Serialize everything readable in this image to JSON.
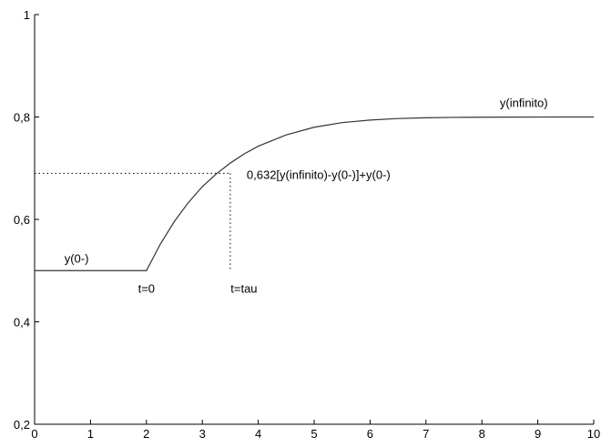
{
  "chart_data": {
    "type": "line",
    "title": "",
    "xlabel": "",
    "ylabel": "",
    "xlim": [
      0,
      10
    ],
    "ylim": [
      0.2,
      1
    ],
    "x_ticks": [
      0,
      1,
      2,
      3,
      4,
      5,
      6,
      7,
      8,
      9,
      10
    ],
    "x_tick_labels": [
      "0",
      "1",
      "2",
      "3",
      "4",
      "5",
      "6",
      "7",
      "8",
      "9",
      "10"
    ],
    "y_ticks": [
      0.2,
      0.4,
      0.6,
      0.8,
      1.0
    ],
    "y_tick_labels": [
      "0,2",
      "0,4",
      "0,6",
      "0,8",
      "1"
    ],
    "grid": false,
    "series": [
      {
        "x": [
          0,
          1,
          2,
          2.25,
          2.5,
          2.75,
          3,
          3.25,
          3.5,
          3.75,
          4,
          4.5,
          5,
          5.5,
          6,
          6.5,
          7,
          7.5,
          8,
          8.5,
          9,
          9.5,
          10
        ],
        "y": [
          0.5,
          0.5,
          0.5,
          0.552,
          0.596,
          0.633,
          0.664,
          0.689,
          0.71,
          0.728,
          0.743,
          0.765,
          0.78,
          0.789,
          0.794,
          0.797,
          0.7985,
          0.7992,
          0.7996,
          0.7998,
          0.7999,
          0.8,
          0.8
        ],
        "color": "#333333"
      }
    ],
    "guides": {
      "tau_x": 3.5,
      "level_y": 0.69,
      "t0_x": 2,
      "base_y": 0.5
    },
    "annotations": [
      {
        "text": "y(0-)",
        "x": 0.75,
        "y": 0.5
      },
      {
        "text": "t=0",
        "x": 2.0,
        "y": 0.5
      },
      {
        "text": "t=tau",
        "x": 3.5,
        "y": 0.5
      },
      {
        "text": "0,632[y(infinito)-y(0-)]+y(0-)",
        "x": 3.5,
        "y": 0.69
      },
      {
        "text": "y(infinito)",
        "x": 8.75,
        "y": 0.8
      }
    ]
  }
}
